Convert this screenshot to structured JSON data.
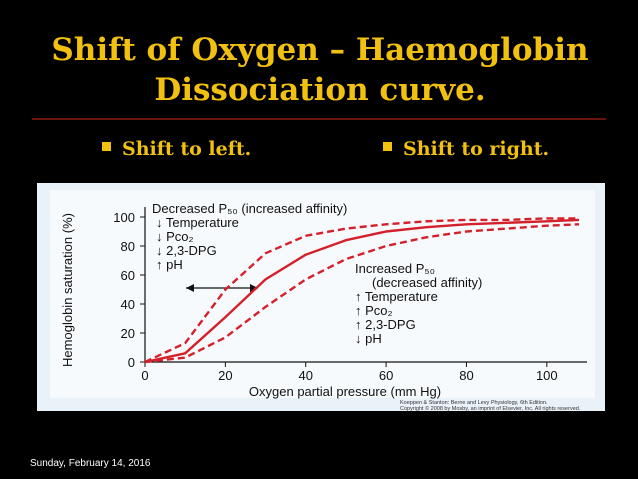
{
  "slide": {
    "title_lines": [
      "Shift of Oxygen – Haemoglobin",
      "Dissociation curve."
    ],
    "bullets": [
      "Shift to left.",
      "Shift to right."
    ],
    "footer": "Sunday, February 14, 2016"
  },
  "chart_data": {
    "type": "line",
    "x_label": "Oxygen partial pressure (mm Hg)",
    "y_label": "Hemoglobin saturation (%)",
    "annotations_left": [
      "Decreased P₅₀ (increased affinity)",
      "↓ Temperature",
      "↓ Pco₂",
      "↓ 2,3-DPG",
      "↑ pH"
    ],
    "annotations_right": [
      "Increased P₅₀",
      "(decreased affinity)",
      "↑ Temperature",
      "↑ Pco₂",
      "↑ 2,3-DPG",
      "↓ pH"
    ],
    "credit": [
      "Koeppen & Stanton: Berne and Levy Physiology, 6th Edition.",
      "Copyright © 2008 by Mosby, an imprint of Elsevier, Inc. All rights reserved."
    ],
    "x": [
      0,
      10,
      20,
      30,
      40,
      50,
      60,
      70,
      80,
      90,
      100,
      108
    ],
    "series": [
      {
        "color": "#d4202a",
        "dashed": true,
        "values": [
          0,
          13,
          50,
          75,
          87,
          92,
          95,
          97,
          98,
          98,
          99,
          99
        ]
      },
      {
        "color": "#d4202a",
        "dashed": false,
        "values": [
          0,
          6,
          31,
          57,
          74,
          84,
          90,
          93,
          95,
          96,
          97,
          98
        ]
      },
      {
        "color": "#d4202a",
        "dashed": true,
        "values": [
          0,
          3,
          17,
          38,
          57,
          71,
          80,
          86,
          90,
          92,
          94,
          95
        ]
      }
    ],
    "xlim": [
      0,
      110
    ],
    "ylim": [
      0,
      100
    ],
    "xticks": [
      0,
      20,
      40,
      60,
      80,
      100
    ],
    "yticks": [
      0,
      20,
      40,
      60,
      80,
      100
    ],
    "grid": false
  }
}
